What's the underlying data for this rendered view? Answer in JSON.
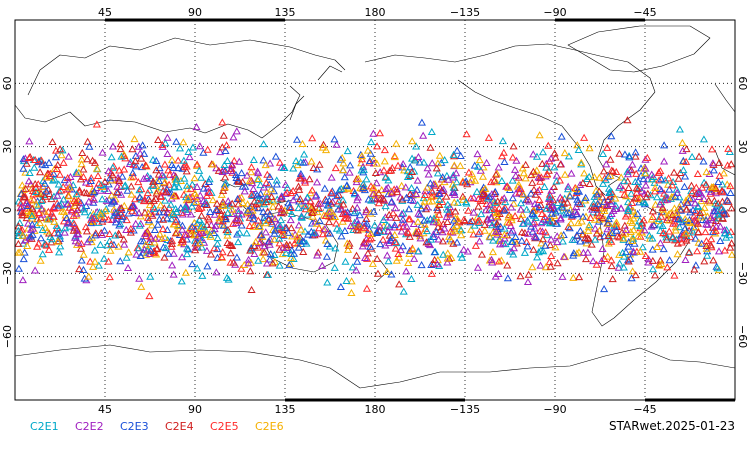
{
  "map": {
    "projection": "equirectangular",
    "center_longitude": 180,
    "lon_range": [
      0,
      360
    ],
    "lat_range": [
      -90,
      90
    ],
    "lon_gridlines": [
      45,
      90,
      135,
      180,
      225,
      270,
      315
    ],
    "lat_gridlines": [
      60,
      30,
      0,
      -30,
      -60
    ],
    "grid": "dotted",
    "marker": "triangle-outline",
    "observation_lat_band": [
      -45,
      45
    ],
    "lon_tick_labels": [
      {
        "lon": 45,
        "label": "45"
      },
      {
        "lon": 90,
        "label": "90"
      },
      {
        "lon": 135,
        "label": "135"
      },
      {
        "lon": 180,
        "label": "180"
      },
      {
        "lon": 225,
        "label": "−135"
      },
      {
        "lon": 270,
        "label": "−90"
      },
      {
        "lon": 315,
        "label": "−45"
      }
    ],
    "lat_tick_labels": [
      {
        "lat": 60,
        "label": "60"
      },
      {
        "lat": 30,
        "label": "30"
      },
      {
        "lat": 0,
        "label": "0"
      },
      {
        "lat": -30,
        "label": "−30"
      },
      {
        "lat": -60,
        "label": "−60"
      }
    ]
  },
  "legend": [
    {
      "label": "C2E1",
      "color": "#00a8c8"
    },
    {
      "label": "C2E2",
      "color": "#a020c0"
    },
    {
      "label": "C2E3",
      "color": "#1a50d8"
    },
    {
      "label": "C2E4",
      "color": "#d02020"
    },
    {
      "label": "C2E5",
      "color": "#ff2a2a"
    },
    {
      "label": "C2E6",
      "color": "#f5b000"
    }
  ],
  "footer": {
    "label": "STARwet.2025-01-23"
  }
}
